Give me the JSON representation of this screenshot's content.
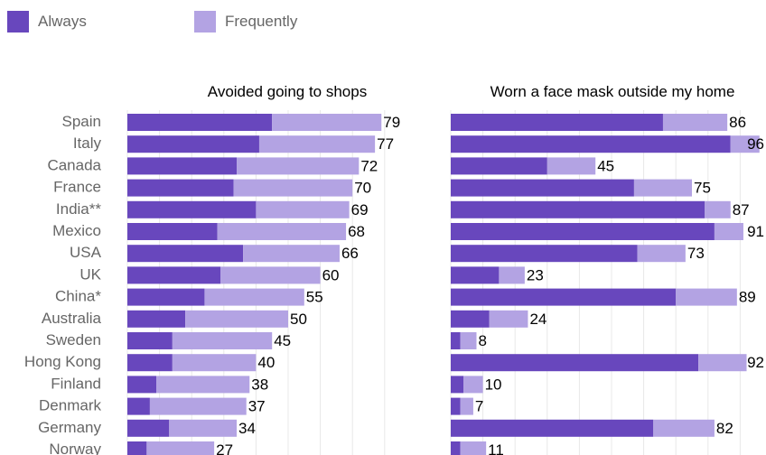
{
  "colors": {
    "always": "#6847bd",
    "frequently": "#b3a3e3",
    "text": "#666666",
    "value_text": "#000000",
    "grid": "#e8e8e8"
  },
  "legend": [
    {
      "label": "Always",
      "color": "#6847bd"
    },
    {
      "label": "Frequently",
      "color": "#b3a3e3"
    }
  ],
  "chart_data": [
    {
      "type": "bar",
      "orientation": "horizontal",
      "stacked": true,
      "title": "Avoided going to shops",
      "categories": [
        "Spain",
        "Italy",
        "Canada",
        "France",
        "India**",
        "Mexico",
        "USA",
        "UK",
        "China*",
        "Australia",
        "Sweden",
        "Hong Kong",
        "Finland",
        "Denmark",
        "Germany",
        "Norway"
      ],
      "series": [
        {
          "name": "Always",
          "values": [
            45,
            41,
            34,
            33,
            40,
            28,
            36,
            29,
            24,
            18,
            14,
            14,
            9,
            7,
            13,
            6
          ]
        },
        {
          "name": "Frequently",
          "values": [
            34,
            36,
            38,
            37,
            29,
            40,
            30,
            31,
            31,
            32,
            31,
            26,
            29,
            30,
            21,
            21
          ]
        }
      ],
      "totals": [
        79,
        77,
        72,
        70,
        69,
        68,
        66,
        60,
        55,
        50,
        45,
        40,
        38,
        37,
        34,
        27
      ],
      "xlim": [
        0,
        80
      ],
      "grid": true
    },
    {
      "type": "bar",
      "orientation": "horizontal",
      "stacked": true,
      "title": "Worn a face mask outside my home",
      "categories": [
        "Spain",
        "Italy",
        "Canada",
        "France",
        "India**",
        "Mexico",
        "USA",
        "UK",
        "China*",
        "Australia",
        "Sweden",
        "Hong Kong",
        "Finland",
        "Denmark",
        "Germany",
        "Norway"
      ],
      "series": [
        {
          "name": "Always",
          "values": [
            66,
            87,
            30,
            57,
            79,
            82,
            58,
            15,
            70,
            12,
            3,
            77,
            4,
            3,
            63,
            3
          ]
        },
        {
          "name": "Frequently",
          "values": [
            20,
            9,
            15,
            18,
            8,
            9,
            15,
            8,
            19,
            12,
            5,
            15,
            6,
            4,
            19,
            8
          ]
        }
      ],
      "totals": [
        86,
        96,
        45,
        75,
        87,
        91,
        73,
        23,
        89,
        24,
        8,
        92,
        10,
        7,
        82,
        11
      ],
      "xlim": [
        0,
        100
      ],
      "grid": true
    }
  ]
}
